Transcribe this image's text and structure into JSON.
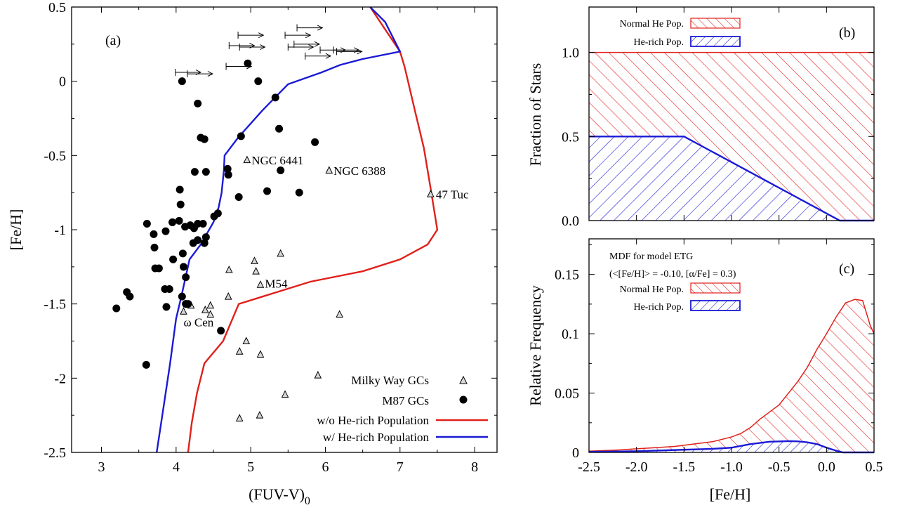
{
  "chart_data": [
    {
      "panel_label": "(a)",
      "type": "scatter",
      "xlabel": "(FUV-V)",
      "xlabel_sub": "0",
      "ylabel": "[Fe/H]",
      "xlim": [
        2.6,
        8.3
      ],
      "ylim": [
        -2.5,
        0.5
      ],
      "y_reversed": true,
      "xticks": [
        "3",
        "4",
        "5",
        "6",
        "7",
        "8"
      ],
      "yticks": [
        "0.5",
        "0",
        "-0.5",
        "-1",
        "-1.5",
        "-2",
        "-2.5"
      ],
      "series": [
        {
          "name": "M87 GCs",
          "marker": "filled-circle",
          "color": "#000000",
          "points": [
            [
              4.08,
              0.0
            ],
            [
              4.29,
              -0.15
            ],
            [
              4.33,
              -0.38
            ],
            [
              4.38,
              -0.39
            ],
            [
              4.96,
              0.12
            ],
            [
              5.1,
              0.0
            ],
            [
              5.33,
              -0.11
            ],
            [
              5.38,
              -0.32
            ],
            [
              5.86,
              -0.41
            ],
            [
              4.87,
              -0.37
            ],
            [
              4.25,
              -0.61
            ],
            [
              4.4,
              -0.61
            ],
            [
              4.69,
              -0.59
            ],
            [
              4.7,
              -0.63
            ],
            [
              5.4,
              -0.6
            ],
            [
              4.05,
              -0.73
            ],
            [
              4.06,
              -0.83
            ],
            [
              4.84,
              -0.78
            ],
            [
              5.22,
              -0.74
            ],
            [
              5.65,
              -0.75
            ],
            [
              3.61,
              -0.96
            ],
            [
              3.7,
              -1.03
            ],
            [
              3.86,
              -1.01
            ],
            [
              3.95,
              -0.95
            ],
            [
              4.04,
              -0.94
            ],
            [
              4.12,
              -0.98
            ],
            [
              4.19,
              -0.97
            ],
            [
              4.24,
              -0.99
            ],
            [
              4.29,
              -0.96
            ],
            [
              4.36,
              -0.96
            ],
            [
              4.51,
              -0.91
            ],
            [
              4.56,
              -0.89
            ],
            [
              3.71,
              -1.12
            ],
            [
              3.72,
              -1.26
            ],
            [
              3.77,
              -1.26
            ],
            [
              3.96,
              -1.2
            ],
            [
              4.23,
              -1.09
            ],
            [
              4.29,
              -1.07
            ],
            [
              4.38,
              -1.09
            ],
            [
              4.4,
              -1.05
            ],
            [
              4.09,
              -1.16
            ],
            [
              4.1,
              -1.25
            ],
            [
              4.13,
              -1.32
            ],
            [
              3.85,
              -1.4
            ],
            [
              3.91,
              -1.4
            ],
            [
              4.08,
              -1.45
            ],
            [
              4.13,
              -1.5
            ],
            [
              4.16,
              -1.5
            ],
            [
              3.34,
              -1.42
            ],
            [
              3.38,
              -1.45
            ],
            [
              3.2,
              -1.53
            ],
            [
              3.87,
              -1.52
            ],
            [
              4.6,
              -1.68
            ],
            [
              3.6,
              -1.91
            ]
          ]
        },
        {
          "name": "Milky Way GCs",
          "marker": "open-triangle",
          "color": "#000000",
          "points": [
            [
              4.95,
              -0.53
            ],
            [
              6.05,
              -0.6
            ],
            [
              7.41,
              -0.76
            ],
            [
              5.05,
              -1.21
            ],
            [
              5.4,
              -1.16
            ],
            [
              4.71,
              -1.27
            ],
            [
              5.07,
              -1.28
            ],
            [
              5.13,
              -1.37
            ],
            [
              4.7,
              -1.45
            ],
            [
              4.2,
              -1.51
            ],
            [
              4.46,
              -1.51
            ],
            [
              4.39,
              -1.54
            ],
            [
              4.46,
              -1.57
            ],
            [
              4.1,
              -1.55
            ],
            [
              6.19,
              -1.57
            ],
            [
              4.94,
              -1.75
            ],
            [
              4.85,
              -1.82
            ],
            [
              5.13,
              -1.84
            ],
            [
              5.9,
              -1.98
            ],
            [
              5.46,
              -2.11
            ],
            [
              4.85,
              -2.27
            ],
            [
              5.12,
              -2.25
            ]
          ]
        }
      ],
      "lower_limits": [
        [
          3.99,
          0.06
        ],
        [
          4.15,
          0.05
        ],
        [
          4.83,
          0.31
        ],
        [
          4.71,
          0.24
        ],
        [
          4.85,
          0.23
        ],
        [
          5.46,
          0.31
        ],
        [
          5.58,
          0.25
        ],
        [
          5.62,
          0.36
        ],
        [
          5.5,
          0.23
        ],
        [
          5.93,
          0.21
        ],
        [
          5.73,
          0.17
        ],
        [
          4.67,
          0.1
        ],
        [
          6.11,
          0.21
        ],
        [
          6.15,
          0.2
        ]
      ],
      "upper_limit_arrow_length": 0.34,
      "lines": [
        {
          "name": "w/o He-rich Population",
          "color": "#e0201a",
          "points": [
            [
              4.16,
              -2.5
            ],
            [
              4.21,
              -2.3
            ],
            [
              4.28,
              -2.1
            ],
            [
              4.38,
              -1.9
            ],
            [
              4.63,
              -1.75
            ],
            [
              4.84,
              -1.5
            ],
            [
              5.8,
              -1.35
            ],
            [
              6.5,
              -1.28
            ],
            [
              7.0,
              -1.2
            ],
            [
              7.37,
              -1.1
            ],
            [
              7.5,
              -1.0
            ],
            [
              7.42,
              -0.75
            ],
            [
              7.32,
              -0.45
            ],
            [
              7.2,
              -0.2
            ],
            [
              7.06,
              0.1
            ],
            [
              7.0,
              0.2
            ],
            [
              6.6,
              0.5
            ]
          ]
        },
        {
          "name": "w/ He-rich Population",
          "color": "#1a1ad6",
          "points": [
            [
              3.74,
              -2.5
            ],
            [
              3.83,
              -2.2
            ],
            [
              3.92,
              -1.9
            ],
            [
              4.0,
              -1.6
            ],
            [
              4.07,
              -1.45
            ],
            [
              4.18,
              -1.2
            ],
            [
              4.33,
              -1.1
            ],
            [
              4.5,
              -0.95
            ],
            [
              4.57,
              -0.85
            ],
            [
              4.61,
              -0.75
            ],
            [
              4.64,
              -0.6
            ],
            [
              4.65,
              -0.5
            ],
            [
              4.83,
              -0.38
            ],
            [
              5.15,
              -0.2
            ],
            [
              5.5,
              -0.02
            ],
            [
              5.95,
              0.06
            ],
            [
              6.2,
              0.11
            ],
            [
              6.5,
              0.15
            ],
            [
              7.0,
              0.2
            ],
            [
              6.8,
              0.4
            ],
            [
              6.6,
              0.5
            ]
          ]
        }
      ],
      "annotations": [
        {
          "text": "NGC 6441",
          "x": 5.01,
          "y": -0.56
        },
        {
          "text": "NGC 6388",
          "x": 6.11,
          "y": -0.63
        },
        {
          "text": "47 Tuc",
          "x": 7.48,
          "y": -0.79
        },
        {
          "text": "M54",
          "x": 5.19,
          "y": -1.39
        },
        {
          "text": "ω Cen",
          "x": 4.1,
          "y": -1.65
        }
      ],
      "legend": [
        "Milky Way GCs",
        "M87 GCs",
        "w/o He-rich Population",
        "w/ He-rich Population"
      ],
      "legend_position": "bottom-right"
    },
    {
      "panel_label": "(b)",
      "type": "area",
      "ylabel": "Fraction of Stars",
      "xlim": [
        -2.5,
        0.5
      ],
      "ylim": [
        0.0,
        1.27
      ],
      "yticks": [
        "0.0",
        "0.5",
        "1.0"
      ],
      "series": [
        {
          "name": "Normal He Pop.",
          "color": "#e0201a",
          "hatch": "backslash",
          "x": [
            -2.5,
            0.5
          ],
          "y": [
            1.0,
            1.0
          ]
        },
        {
          "name": "He-rich Pop.",
          "color": "#1a1ad6",
          "hatch": "slash",
          "x": [
            -2.5,
            -1.5,
            0.14,
            0.5
          ],
          "y": [
            0.5,
            0.5,
            0.0,
            0.0
          ]
        }
      ],
      "legend": [
        "Normal He Pop.",
        "He-rich Pop."
      ],
      "legend_position": "top-left"
    },
    {
      "panel_label": "(c)",
      "type": "area",
      "title_lines": [
        "MDF for model ETG",
        "(<[Fe/H]> = -0.10, [α/Fe] = 0.3)"
      ],
      "xlabel": "[Fe/H]",
      "ylabel": "Relative Frequency",
      "xlim": [
        -2.5,
        0.5
      ],
      "ylim": [
        0.0,
        0.18
      ],
      "xticks": [
        "-2.5",
        "-2.0",
        "-1.5",
        "-1.0",
        "-0.5",
        "0.0",
        "0.5"
      ],
      "yticks": [
        "0",
        "0.05",
        "0.1",
        "0.15"
      ],
      "series": [
        {
          "name": "Normal He Pop.",
          "color": "#e0201a",
          "hatch": "backslash",
          "x": [
            -2.5,
            -2.2,
            -2.0,
            -1.8,
            -1.6,
            -1.4,
            -1.2,
            -1.0,
            -0.9,
            -0.8,
            -0.7,
            -0.6,
            -0.5,
            -0.4,
            -0.3,
            -0.2,
            -0.1,
            0.0,
            0.1,
            0.2,
            0.3,
            0.38,
            0.46,
            0.5
          ],
          "y": [
            0.001,
            0.002,
            0.003,
            0.004,
            0.005,
            0.007,
            0.009,
            0.013,
            0.016,
            0.021,
            0.028,
            0.034,
            0.04,
            0.05,
            0.06,
            0.072,
            0.087,
            0.1,
            0.114,
            0.126,
            0.129,
            0.128,
            0.107,
            0.1
          ]
        },
        {
          "name": "He-rich Pop.",
          "color": "#1a1ad6",
          "hatch": "slash",
          "x": [
            -2.5,
            -2.0,
            -1.6,
            -1.2,
            -1.0,
            -0.8,
            -0.6,
            -0.4,
            -0.3,
            -0.2,
            -0.1,
            0.0,
            0.1,
            0.17,
            0.3,
            0.5
          ],
          "y": [
            0.0005,
            0.001,
            0.002,
            0.003,
            0.004,
            0.007,
            0.009,
            0.0095,
            0.0093,
            0.0085,
            0.007,
            0.004,
            0.0015,
            0.0,
            0.0,
            0.0
          ]
        }
      ],
      "legend": [
        "Normal He Pop.",
        "He-rich Pop."
      ],
      "legend_position": "top-left"
    }
  ]
}
